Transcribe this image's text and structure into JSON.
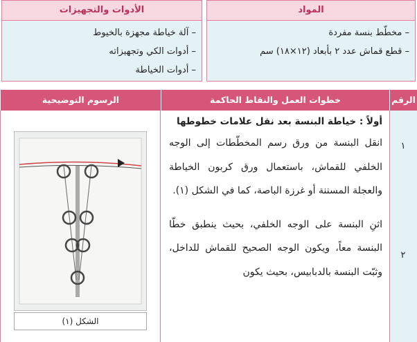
{
  "materials": {
    "title": "المواد",
    "items": [
      "– مخطّط بنسة مفردة",
      "– قطع قماش عدد ٢ بأبعاد (١٢×١٨) سم"
    ]
  },
  "tools": {
    "title": "الأدوات والتجهيزات",
    "items": [
      "– آلة خياطة مجهزة بالخيوط",
      "– أدوات الكي وتجهيزاته",
      "– أدوات الخياطة"
    ]
  },
  "table": {
    "headers": [
      "الرقم",
      "خطوات العمل والنقاط الحاكمة",
      "الرسوم التوضيحية"
    ],
    "section_title": "أولاً : خياطة البنسة بعد نقل علامات خطوطها",
    "steps": [
      {
        "number": "١",
        "text": "انقل البنسة من ورق رسم المخطّطات إلى الوجه الخلفي للقماش، باستعمال ورق كربون الخياطة والعجلة المسننة أو غرزة الباصة، كما في الشكل (١)."
      },
      {
        "number": "٢",
        "text": "اثنِ البنسة على الوجه الخلفي، بحيث ينطبق خطّا البنسة معاً، ويكون الوجه الصحيح للقماش للداخل، وثبّت البنسة بالدبابيس، بحيث يكون"
      }
    ],
    "figure_caption": "الشكل (١)"
  }
}
